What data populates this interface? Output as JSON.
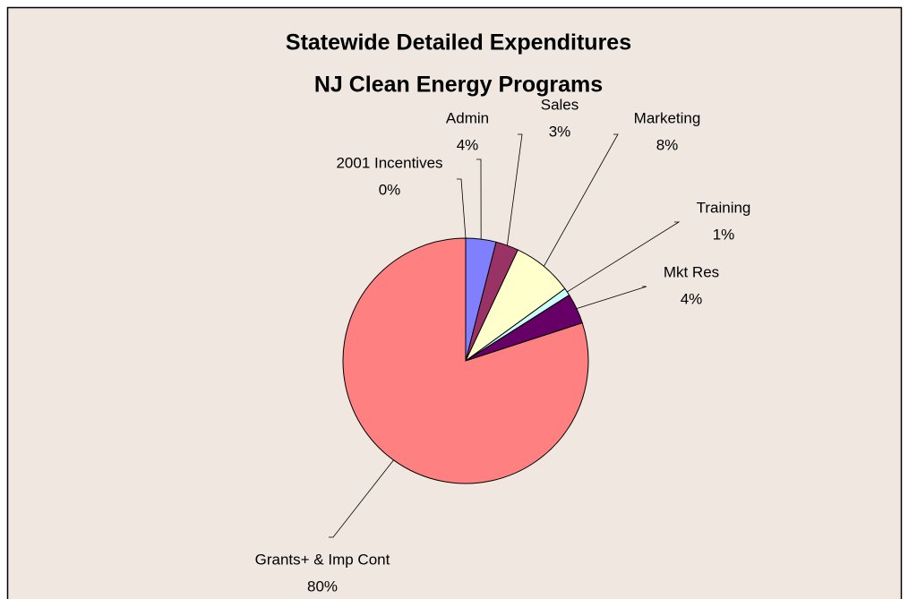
{
  "chart_data": {
    "type": "pie",
    "title": "Statewide Detailed Expenditures",
    "subtitle": "NJ Clean Energy Programs",
    "categories": [
      "2001 Incentives",
      "Admin",
      "Sales",
      "Marketing",
      "Training",
      "Mkt Res",
      "Grants+ & Imp Cont"
    ],
    "values": [
      0,
      4,
      3,
      8,
      1,
      4,
      80
    ],
    "value_labels": [
      "0%",
      "4%",
      "3%",
      "8%",
      "1%",
      "4%",
      "80%"
    ],
    "colors": [
      "#9999ff",
      "#8080ff",
      "#993366",
      "#ffffcc",
      "#ccffff",
      "#660066",
      "#ff8080"
    ]
  }
}
